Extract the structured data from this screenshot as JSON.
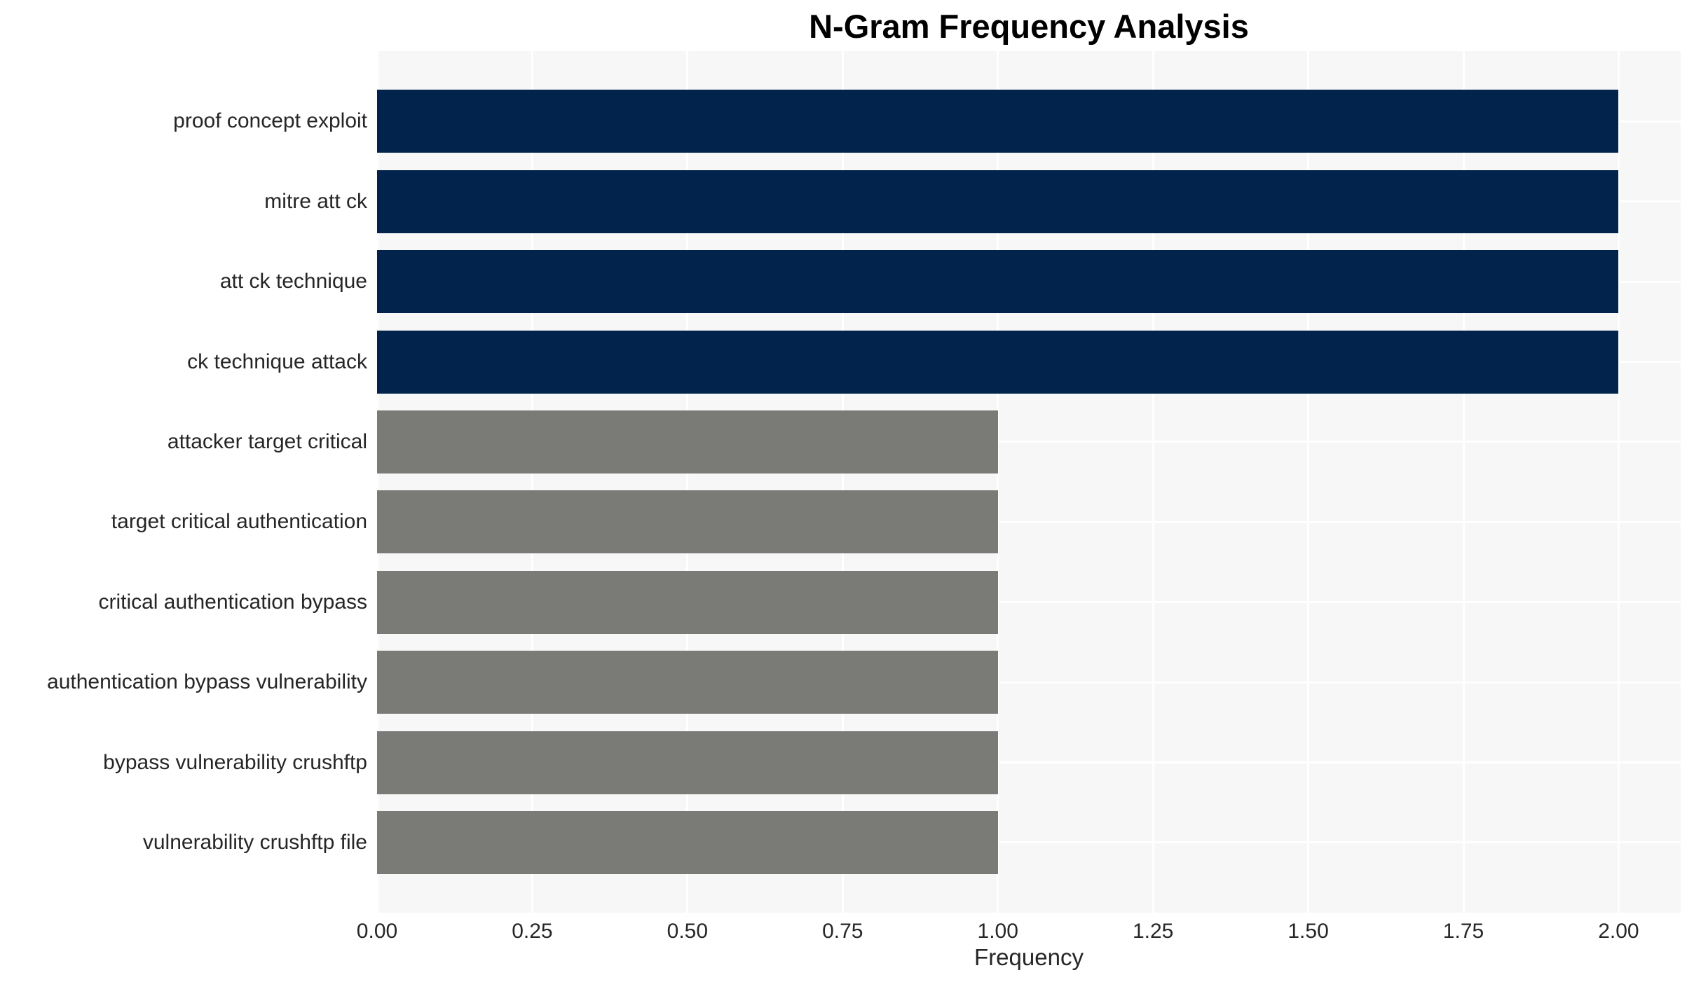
{
  "chart_data": {
    "type": "bar",
    "orientation": "horizontal",
    "title": "N-Gram Frequency Analysis",
    "xlabel": "Frequency",
    "ylabel": "",
    "categories": [
      "proof concept exploit",
      "mitre att ck",
      "att ck technique",
      "ck technique attack",
      "attacker target critical",
      "target critical authentication",
      "critical authentication bypass",
      "authentication bypass vulnerability",
      "bypass vulnerability crushftp",
      "vulnerability crushftp file"
    ],
    "values": [
      2,
      2,
      2,
      2,
      1,
      1,
      1,
      1,
      1,
      1
    ],
    "bar_colors": [
      "#02234c",
      "#02234c",
      "#02234c",
      "#02234c",
      "#7a7a77",
      "#7a7a77",
      "#7a7a77",
      "#7a7a77",
      "#7a7a77",
      "#7a7a77"
    ],
    "xlim": [
      0,
      2.1
    ],
    "xticks": [
      0,
      0.25,
      0.5,
      0.75,
      1.0,
      1.25,
      1.5,
      1.75,
      2.0
    ],
    "xtick_labels": [
      "0.00",
      "0.25",
      "0.50",
      "0.75",
      "1.00",
      "1.25",
      "1.50",
      "1.75",
      "2.00"
    ],
    "grid": true,
    "legend": false,
    "colors": {
      "plot_background": "#f7f7f7",
      "page_background": "#ffffff",
      "gridline": "#ffffff",
      "navy_bar": "#02234c",
      "gray_bar": "#7a7a77",
      "tick_text": "#262626",
      "title_text": "#000000"
    }
  }
}
